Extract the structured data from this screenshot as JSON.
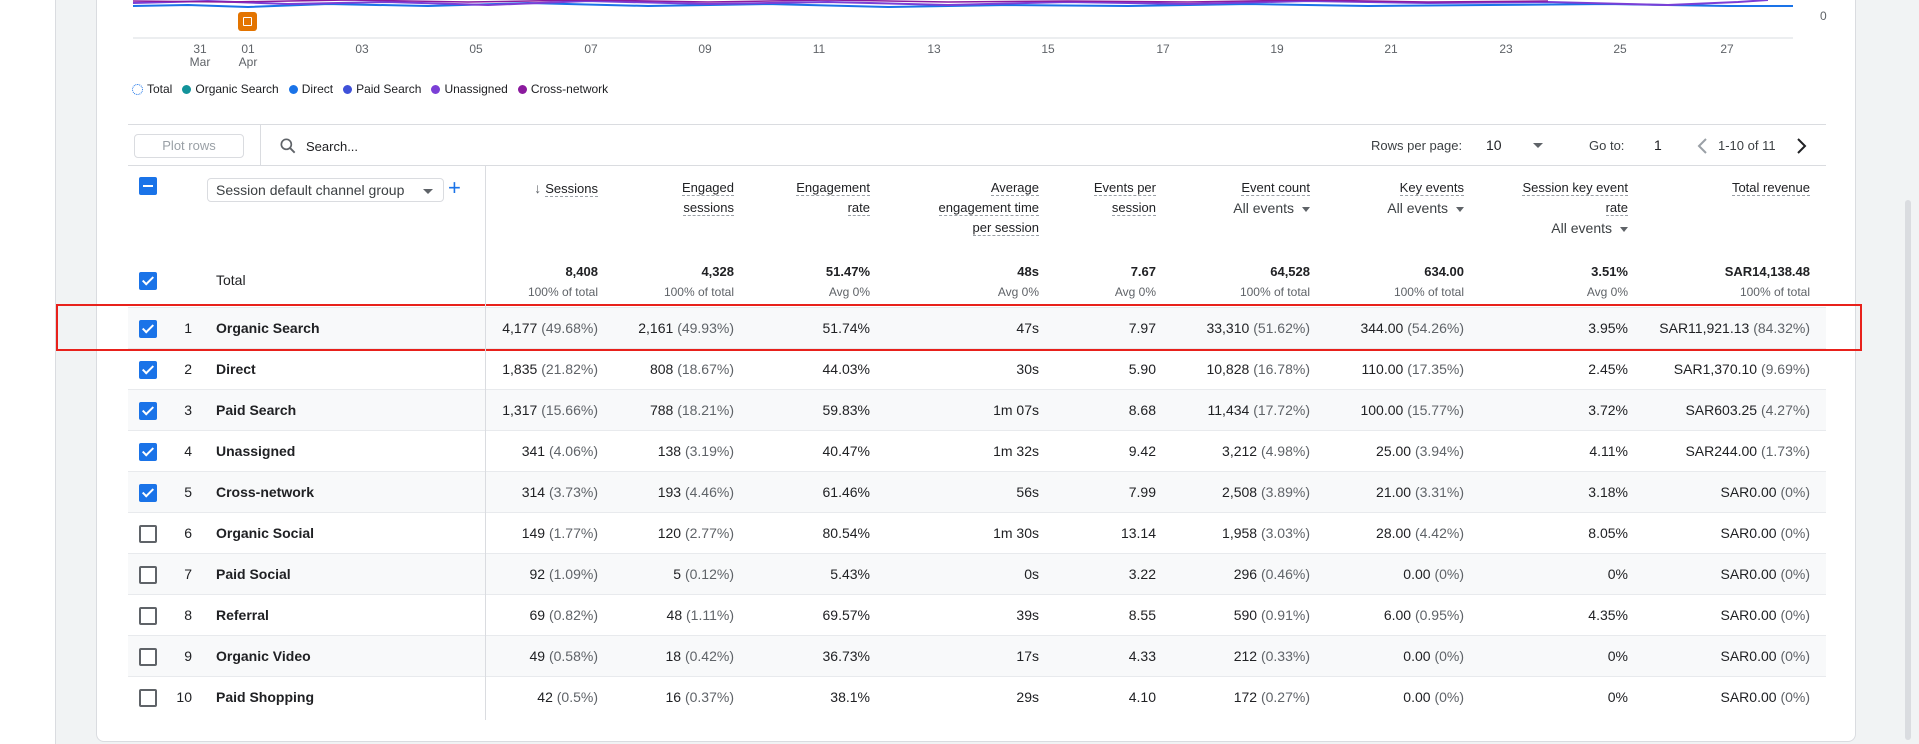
{
  "chart": {
    "zero_label": "0",
    "x_ticks": [
      {
        "day": "31",
        "month": "Mar"
      },
      {
        "day": "01",
        "month": "Apr"
      },
      {
        "day": "03",
        "month": ""
      },
      {
        "day": "05",
        "month": ""
      },
      {
        "day": "07",
        "month": ""
      },
      {
        "day": "09",
        "month": ""
      },
      {
        "day": "11",
        "month": ""
      },
      {
        "day": "13",
        "month": ""
      },
      {
        "day": "15",
        "month": ""
      },
      {
        "day": "17",
        "month": ""
      },
      {
        "day": "19",
        "month": ""
      },
      {
        "day": "21",
        "month": ""
      },
      {
        "day": "23",
        "month": ""
      },
      {
        "day": "25",
        "month": ""
      },
      {
        "day": "27",
        "month": ""
      }
    ],
    "legend": [
      {
        "label": "Total",
        "color": "#1a73e8",
        "style": "dotted"
      },
      {
        "label": "Organic Search",
        "color": "#12939a"
      },
      {
        "label": "Direct",
        "color": "#1a73e8"
      },
      {
        "label": "Paid Search",
        "color": "#3f51d9"
      },
      {
        "label": "Unassigned",
        "color": "#7b3fd6"
      },
      {
        "label": "Cross-network",
        "color": "#8b1a9e"
      }
    ]
  },
  "toolbar": {
    "plot_rows": "Plot rows",
    "search_placeholder": "Search...",
    "rows_per_page_label": "Rows per page:",
    "rows_per_page_value": "10",
    "go_to_label": "Go to:",
    "go_to_value": "1",
    "page_range": "1-10 of 11"
  },
  "table": {
    "dimension": "Session default channel group",
    "columns": {
      "sessions": "Sessions",
      "engaged_sessions_1": "Engaged",
      "engaged_sessions_2": "sessions",
      "engagement_rate_1": "Engagement",
      "engagement_rate_2": "rate",
      "avg_eng_1": "Average",
      "avg_eng_2": "engagement time",
      "avg_eng_3": "per session",
      "events_per_session_1": "Events per",
      "events_per_session_2": "session",
      "event_count": "Event count",
      "event_count_filter": "All events",
      "key_events": "Key events",
      "key_events_filter": "All events",
      "skr_1": "Session key event",
      "skr_2": "rate",
      "skr_filter": "All events",
      "total_revenue": "Total revenue"
    },
    "total": {
      "label": "Total",
      "sessions": "8,408",
      "sessions_sub": "100% of total",
      "engaged": "4,328",
      "engaged_sub": "100% of total",
      "rate": "51.47%",
      "rate_sub": "Avg 0%",
      "avg_time": "48s",
      "avg_time_sub": "Avg 0%",
      "eps": "7.67",
      "eps_sub": "Avg 0%",
      "event_count": "64,528",
      "event_count_sub": "100% of total",
      "key_events": "634.00",
      "key_events_sub": "100% of total",
      "skr": "3.51%",
      "skr_sub": "Avg 0%",
      "revenue": "SAR14,138.48",
      "revenue_sub": "100% of total"
    },
    "rows": [
      {
        "n": "1",
        "name": "Organic Search",
        "checked": true,
        "sessions": "4,177",
        "sessions_p": "(49.68%)",
        "engaged": "2,161",
        "engaged_p": "(49.93%)",
        "rate": "51.74%",
        "avg_time": "47s",
        "eps": "7.97",
        "event_count": "33,310",
        "event_count_p": "(51.62%)",
        "key_events": "344.00",
        "key_events_p": "(54.26%)",
        "skr": "3.95%",
        "revenue": "SAR11,921.13",
        "revenue_p": "(84.32%)"
      },
      {
        "n": "2",
        "name": "Direct",
        "checked": true,
        "sessions": "1,835",
        "sessions_p": "(21.82%)",
        "engaged": "808",
        "engaged_p": "(18.67%)",
        "rate": "44.03%",
        "avg_time": "30s",
        "eps": "5.90",
        "event_count": "10,828",
        "event_count_p": "(16.78%)",
        "key_events": "110.00",
        "key_events_p": "(17.35%)",
        "skr": "2.45%",
        "revenue": "SAR1,370.10",
        "revenue_p": "(9.69%)"
      },
      {
        "n": "3",
        "name": "Paid Search",
        "checked": true,
        "sessions": "1,317",
        "sessions_p": "(15.66%)",
        "engaged": "788",
        "engaged_p": "(18.21%)",
        "rate": "59.83%",
        "avg_time": "1m 07s",
        "eps": "8.68",
        "event_count": "11,434",
        "event_count_p": "(17.72%)",
        "key_events": "100.00",
        "key_events_p": "(15.77%)",
        "skr": "3.72%",
        "revenue": "SAR603.25",
        "revenue_p": "(4.27%)"
      },
      {
        "n": "4",
        "name": "Unassigned",
        "checked": true,
        "sessions": "341",
        "sessions_p": "(4.06%)",
        "engaged": "138",
        "engaged_p": "(3.19%)",
        "rate": "40.47%",
        "avg_time": "1m 32s",
        "eps": "9.42",
        "event_count": "3,212",
        "event_count_p": "(4.98%)",
        "key_events": "25.00",
        "key_events_p": "(3.94%)",
        "skr": "4.11%",
        "revenue": "SAR244.00",
        "revenue_p": "(1.73%)"
      },
      {
        "n": "5",
        "name": "Cross-network",
        "checked": true,
        "sessions": "314",
        "sessions_p": "(3.73%)",
        "engaged": "193",
        "engaged_p": "(4.46%)",
        "rate": "61.46%",
        "avg_time": "56s",
        "eps": "7.99",
        "event_count": "2,508",
        "event_count_p": "(3.89%)",
        "key_events": "21.00",
        "key_events_p": "(3.31%)",
        "skr": "3.18%",
        "revenue": "SAR0.00",
        "revenue_p": "(0%)"
      },
      {
        "n": "6",
        "name": "Organic Social",
        "checked": false,
        "sessions": "149",
        "sessions_p": "(1.77%)",
        "engaged": "120",
        "engaged_p": "(2.77%)",
        "rate": "80.54%",
        "avg_time": "1m 30s",
        "eps": "13.14",
        "event_count": "1,958",
        "event_count_p": "(3.03%)",
        "key_events": "28.00",
        "key_events_p": "(4.42%)",
        "skr": "8.05%",
        "revenue": "SAR0.00",
        "revenue_p": "(0%)"
      },
      {
        "n": "7",
        "name": "Paid Social",
        "checked": false,
        "sessions": "92",
        "sessions_p": "(1.09%)",
        "engaged": "5",
        "engaged_p": "(0.12%)",
        "rate": "5.43%",
        "avg_time": "0s",
        "eps": "3.22",
        "event_count": "296",
        "event_count_p": "(0.46%)",
        "key_events": "0.00",
        "key_events_p": "(0%)",
        "skr": "0%",
        "revenue": "SAR0.00",
        "revenue_p": "(0%)"
      },
      {
        "n": "8",
        "name": "Referral",
        "checked": false,
        "sessions": "69",
        "sessions_p": "(0.82%)",
        "engaged": "48",
        "engaged_p": "(1.11%)",
        "rate": "69.57%",
        "avg_time": "39s",
        "eps": "8.55",
        "event_count": "590",
        "event_count_p": "(0.91%)",
        "key_events": "6.00",
        "key_events_p": "(0.95%)",
        "skr": "4.35%",
        "revenue": "SAR0.00",
        "revenue_p": "(0%)"
      },
      {
        "n": "9",
        "name": "Organic Video",
        "checked": false,
        "sessions": "49",
        "sessions_p": "(0.58%)",
        "engaged": "18",
        "engaged_p": "(0.42%)",
        "rate": "36.73%",
        "avg_time": "17s",
        "eps": "4.33",
        "event_count": "212",
        "event_count_p": "(0.33%)",
        "key_events": "0.00",
        "key_events_p": "(0%)",
        "skr": "0%",
        "revenue": "SAR0.00",
        "revenue_p": "(0%)"
      },
      {
        "n": "10",
        "name": "Paid Shopping",
        "checked": false,
        "sessions": "42",
        "sessions_p": "(0.5%)",
        "engaged": "16",
        "engaged_p": "(0.37%)",
        "rate": "38.1%",
        "avg_time": "29s",
        "eps": "4.10",
        "event_count": "172",
        "event_count_p": "(0.27%)",
        "key_events": "0.00",
        "key_events_p": "(0%)",
        "skr": "0%",
        "revenue": "SAR0.00",
        "revenue_p": "(0%)"
      }
    ]
  }
}
